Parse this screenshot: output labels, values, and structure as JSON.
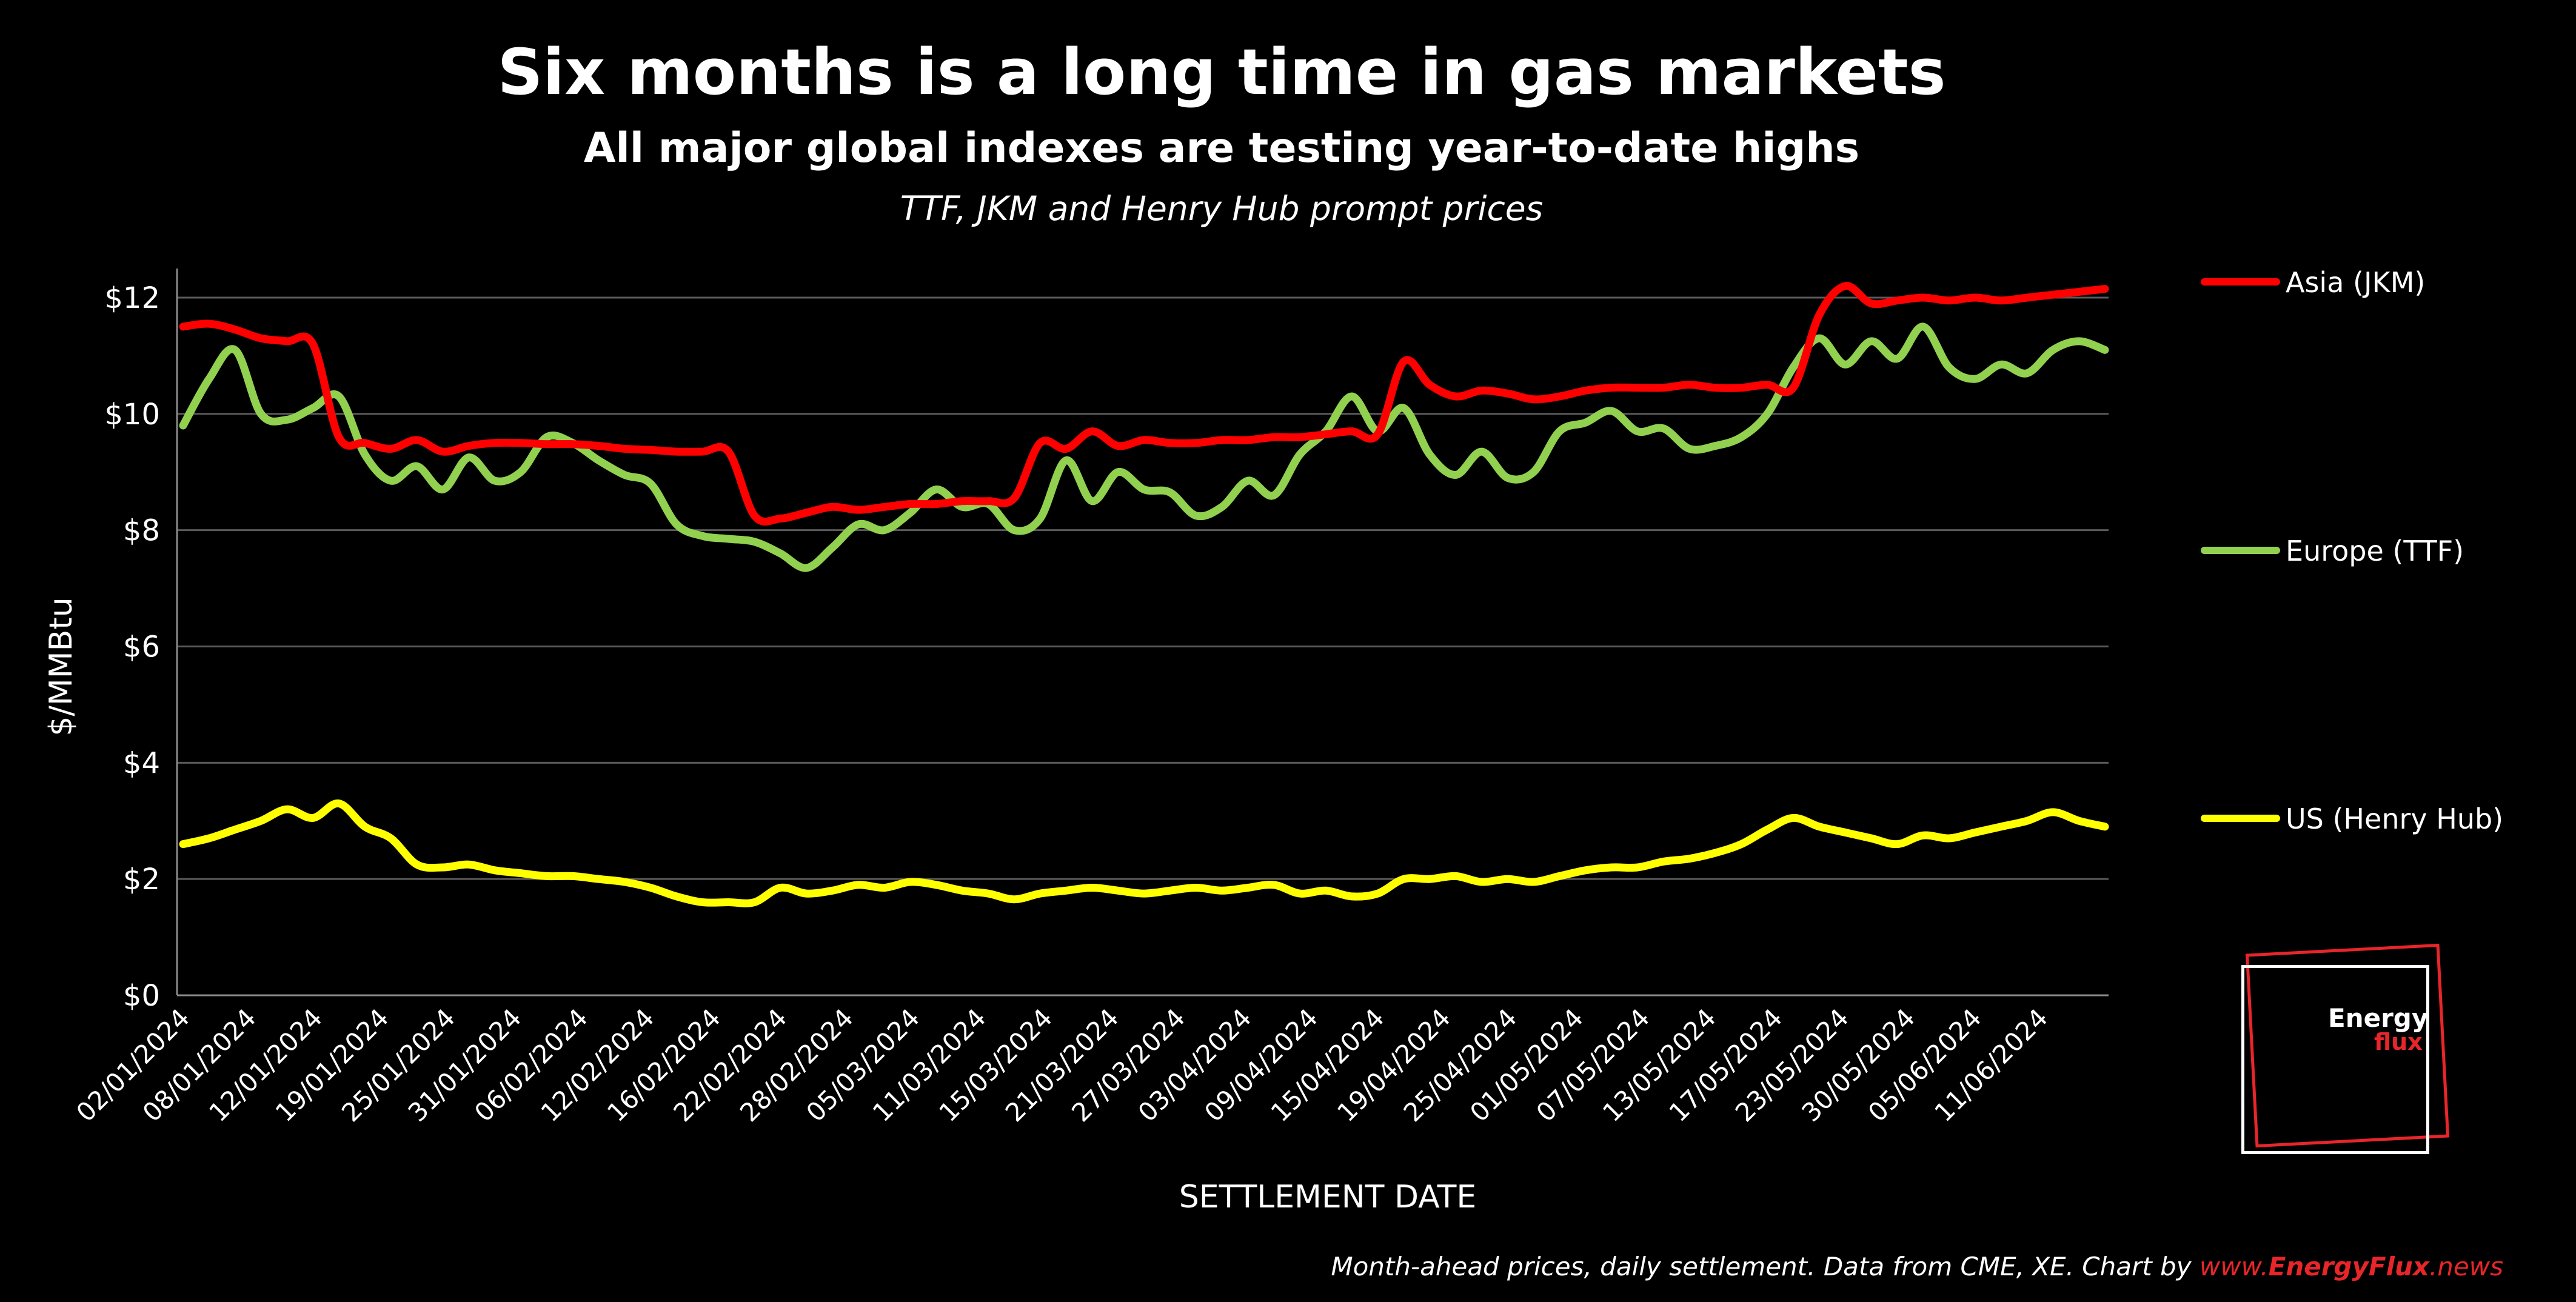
{
  "chart_data": {
    "type": "line",
    "title": "Six months is a long time in gas markets",
    "subtitle": "All major global indexes are testing year-to-date highs",
    "subsubtitle": "TTF, JKM and Henry Hub prompt prices",
    "xlabel": "SETTLEMENT DATE",
    "ylabel": "$/MMBtu",
    "ylim": [
      0,
      12.5
    ],
    "y_ticks": [
      "$0",
      "$2",
      "$4",
      "$6",
      "$8",
      "$10",
      "$12"
    ],
    "y_tick_values": [
      0,
      2,
      4,
      6,
      8,
      10,
      12
    ],
    "grid": true,
    "legend_position": "right",
    "x_tick_labels": [
      "02/01/2024",
      "08/01/2024",
      "12/01/2024",
      "19/01/2024",
      "25/01/2024",
      "31/01/2024",
      "06/02/2024",
      "12/02/2024",
      "16/02/2024",
      "22/02/2024",
      "28/02/2024",
      "05/03/2024",
      "11/03/2024",
      "15/03/2024",
      "21/03/2024",
      "27/03/2024",
      "03/04/2024",
      "09/04/2024",
      "15/04/2024",
      "19/04/2024",
      "25/04/2024",
      "01/05/2024",
      "07/05/2024",
      "13/05/2024",
      "17/05/2024",
      "23/05/2024",
      "30/05/2024",
      "05/06/2024",
      "11/06/2024"
    ],
    "series": [
      {
        "name": "Asia (JKM)",
        "color": "#ff0000",
        "values": [
          11.5,
          11.55,
          11.45,
          11.3,
          11.25,
          11.2,
          9.6,
          9.5,
          9.4,
          9.55,
          9.35,
          9.45,
          9.5,
          9.5,
          9.48,
          9.48,
          9.45,
          9.4,
          9.38,
          9.35,
          9.35,
          9.35,
          8.25,
          8.2,
          8.3,
          8.4,
          8.35,
          8.4,
          8.45,
          8.45,
          8.5,
          8.5,
          8.55,
          9.5,
          9.4,
          9.7,
          9.45,
          9.55,
          9.5,
          9.5,
          9.55,
          9.55,
          9.6,
          9.6,
          9.65,
          9.7,
          9.65,
          10.9,
          10.5,
          10.3,
          10.4,
          10.35,
          10.25,
          10.3,
          10.4,
          10.45,
          10.45,
          10.45,
          10.5,
          10.45,
          10.45,
          10.5,
          10.45,
          11.7,
          12.2,
          11.9,
          11.95,
          12.0,
          11.95,
          12.0,
          11.95,
          12.0,
          12.05,
          12.1,
          12.15
        ]
      },
      {
        "name": "Europe (TTF)",
        "color": "#92d050",
        "values": [
          9.8,
          10.6,
          11.1,
          10.0,
          9.9,
          10.1,
          10.3,
          9.3,
          8.85,
          9.1,
          8.7,
          9.25,
          8.85,
          9.0,
          9.6,
          9.5,
          9.2,
          8.95,
          8.8,
          8.1,
          7.9,
          7.85,
          7.8,
          7.6,
          7.35,
          7.7,
          8.1,
          8.0,
          8.3,
          8.7,
          8.4,
          8.45,
          8.0,
          8.2,
          9.2,
          8.5,
          9.0,
          8.7,
          8.65,
          8.25,
          8.4,
          8.85,
          8.6,
          9.3,
          9.7,
          10.3,
          9.7,
          10.1,
          9.3,
          8.95,
          9.35,
          8.9,
          9.0,
          9.7,
          9.85,
          10.05,
          9.7,
          9.75,
          9.4,
          9.45,
          9.6,
          10.0,
          10.8,
          11.3,
          10.85,
          11.25,
          10.95,
          11.5,
          10.8,
          10.6,
          10.85,
          10.7,
          11.1,
          11.25,
          11.1
        ]
      },
      {
        "name": "US (Henry Hub)",
        "color": "#ffff00",
        "values": [
          2.6,
          2.7,
          2.85,
          3.0,
          3.2,
          3.05,
          3.3,
          2.9,
          2.7,
          2.25,
          2.2,
          2.25,
          2.15,
          2.1,
          2.05,
          2.05,
          2.0,
          1.95,
          1.85,
          1.7,
          1.6,
          1.6,
          1.6,
          1.85,
          1.75,
          1.8,
          1.9,
          1.85,
          1.95,
          1.9,
          1.8,
          1.75,
          1.65,
          1.75,
          1.8,
          1.85,
          1.8,
          1.75,
          1.8,
          1.85,
          1.8,
          1.85,
          1.9,
          1.75,
          1.8,
          1.7,
          1.75,
          2.0,
          2.0,
          2.05,
          1.95,
          2.0,
          1.95,
          2.05,
          2.15,
          2.2,
          2.2,
          2.3,
          2.35,
          2.45,
          2.6,
          2.85,
          3.05,
          2.9,
          2.8,
          2.7,
          2.6,
          2.75,
          2.7,
          2.8,
          2.9,
          3.0,
          3.15,
          3.0,
          2.9
        ]
      }
    ]
  },
  "footer": {
    "text": "Month-ahead prices, daily settlement. Data from CME, XE. Chart by ",
    "link_prefix": "www.",
    "link_brand": "EnergyFlux",
    "link_suffix": ".news"
  },
  "logo": {
    "line1": "Energy",
    "line2": "flux"
  }
}
